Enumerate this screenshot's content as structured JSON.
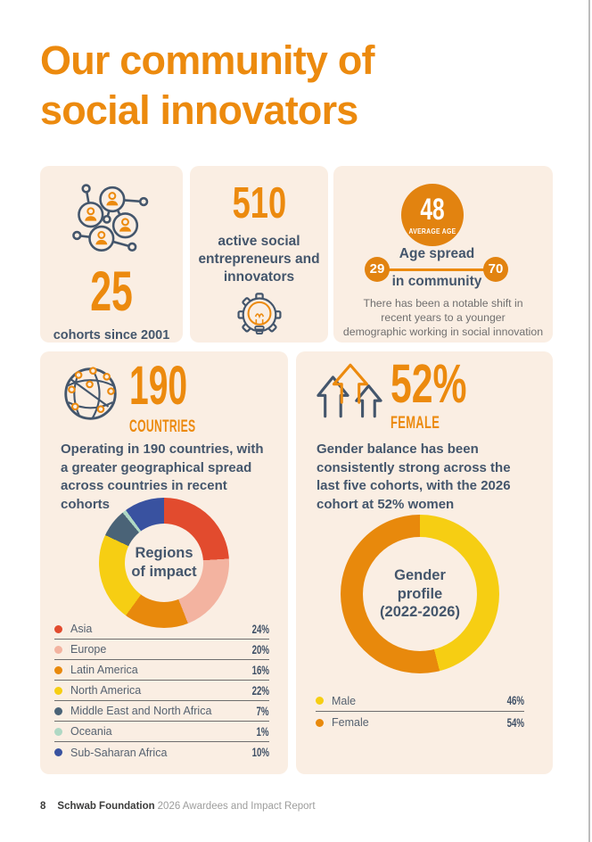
{
  "page": {
    "title_lines": [
      "Our community of",
      "social innovators"
    ],
    "footer": {
      "page_number": "8",
      "brand": "Schwab Foundation",
      "report_title": "2026 Awardees and Impact Report"
    }
  },
  "colors": {
    "orange_text": "#EC8A0E",
    "orange_badge": "#E28310",
    "card_background": "#FAEEE3",
    "slate_text": "#44566C",
    "note_gray": "#706F6F"
  },
  "cards": {
    "cohorts": {
      "icon": "people-network-icon",
      "value": "25",
      "caption": "cohorts since 2001"
    },
    "entrepreneurs": {
      "value": "510",
      "caption_lines": [
        "active social",
        "entrepreneurs and",
        "innovators"
      ],
      "icon": "lightbulb-gear-icon"
    },
    "age": {
      "average_value": "48",
      "average_caption": "AVERAGE AGE",
      "spread_min": "29",
      "spread_max": "70",
      "spread_label_line1": "Age spread",
      "spread_label_line2": "in community",
      "note_lines": [
        "There has been a notable shift in",
        "recent years to a younger",
        "demographic working in social innovation"
      ]
    },
    "countries": {
      "icon": "globe-network-icon",
      "value": "190",
      "unit_label": "COUNTRIES",
      "description_lines": [
        "Operating in 190 countries, with",
        "a greater geographical spread",
        "across countries in recent cohorts"
      ]
    },
    "gender": {
      "icon": "growth-arrows-icon",
      "value": "52%",
      "unit_label": "FEMALE",
      "description_lines": [
        "Gender balance has been",
        "consistently strong across the",
        "last five cohorts, with the 2026",
        "cohort at 52% women"
      ]
    }
  },
  "chart_data": [
    {
      "type": "pie",
      "variant": "donut",
      "title": "Regions of impact",
      "center_label_lines": [
        "Regions",
        "of impact"
      ],
      "start_angle_deg": 0,
      "direction": "clockwise",
      "legend_position": "below",
      "segments": [
        {
          "label": "Asia",
          "value": 24,
          "display": "24%",
          "color": "#E24B2E"
        },
        {
          "label": "Europe",
          "value": 20,
          "display": "20%",
          "color": "#F3B3A0"
        },
        {
          "label": "Latin America",
          "value": 16,
          "display": "16%",
          "color": "#E8890C"
        },
        {
          "label": "North America",
          "value": 22,
          "display": "22%",
          "color": "#F6CE13"
        },
        {
          "label": "Middle East and North Africa",
          "value": 7,
          "display": "7%",
          "color": "#4A6377"
        },
        {
          "label": "Oceania",
          "value": 1,
          "display": "1%",
          "color": "#AFD8C4"
        },
        {
          "label": "Sub-Saharan Africa",
          "value": 10,
          "display": "10%",
          "color": "#3952A0"
        }
      ]
    },
    {
      "type": "pie",
      "variant": "donut",
      "title": "Gender profile (2022-2026)",
      "center_label_lines": [
        "Gender",
        "profile",
        "(2022-2026)"
      ],
      "start_angle_deg": 0,
      "direction": "clockwise",
      "legend_position": "below",
      "segments": [
        {
          "label": "Male",
          "value": 46,
          "display": "46%",
          "color": "#F6CE13"
        },
        {
          "label": "Female",
          "value": 54,
          "display": "54%",
          "color": "#E8890C"
        }
      ]
    }
  ]
}
